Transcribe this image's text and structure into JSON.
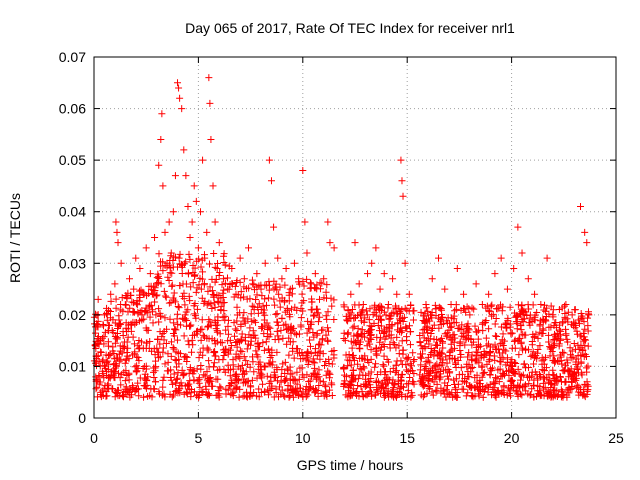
{
  "chart_data": {
    "type": "scatter",
    "title": "Day 065 of 2017, Rate Of TEC Index for receiver nrl1",
    "xlabel": "GPS time / hours",
    "ylabel": "ROTI / TECUs",
    "xlim": [
      0,
      25
    ],
    "ylim": [
      0,
      0.07
    ],
    "x_ticks": [
      0,
      5,
      10,
      15,
      20,
      25
    ],
    "x_tick_labels": [
      "0",
      "5",
      "10",
      "15",
      "20",
      "25"
    ],
    "y_ticks": [
      0,
      0.01,
      0.02,
      0.03,
      0.04,
      0.05,
      0.06,
      0.07
    ],
    "y_tick_labels": [
      "0",
      "0.01",
      "0.02",
      "0.03",
      "0.04",
      "0.05",
      "0.06",
      "0.07"
    ],
    "grid": true,
    "marker": "+",
    "marker_color": "#ff0000",
    "series": [
      {
        "points": [
          [
            0.1,
            0.012
          ],
          [
            0.15,
            0.018
          ],
          [
            0.2,
            0.023
          ],
          [
            0.25,
            0.008
          ],
          [
            0.3,
            0.015
          ],
          [
            0.4,
            0.011
          ],
          [
            0.5,
            0.02
          ],
          [
            0.6,
            0.009
          ],
          [
            0.7,
            0.017
          ],
          [
            0.8,
            0.024
          ],
          [
            0.9,
            0.013
          ],
          [
            1.0,
            0.026
          ],
          [
            1.05,
            0.038
          ],
          [
            1.1,
            0.036
          ],
          [
            1.15,
            0.034
          ],
          [
            1.2,
            0.019
          ],
          [
            1.3,
            0.03
          ],
          [
            1.4,
            0.016
          ],
          [
            1.5,
            0.022
          ],
          [
            1.6,
            0.012
          ],
          [
            1.7,
            0.027
          ],
          [
            1.8,
            0.018
          ],
          [
            1.9,
            0.025
          ],
          [
            2.0,
            0.031
          ],
          [
            2.1,
            0.014
          ],
          [
            2.2,
            0.029
          ],
          [
            2.3,
            0.02
          ],
          [
            2.4,
            0.024
          ],
          [
            2.5,
            0.033
          ],
          [
            2.6,
            0.017
          ],
          [
            2.7,
            0.028
          ],
          [
            2.8,
            0.021
          ],
          [
            2.9,
            0.035
          ],
          [
            3.0,
            0.026
          ],
          [
            3.1,
            0.049
          ],
          [
            3.2,
            0.054
          ],
          [
            3.25,
            0.059
          ],
          [
            3.3,
            0.045
          ],
          [
            3.4,
            0.036
          ],
          [
            3.5,
            0.03
          ],
          [
            3.6,
            0.038
          ],
          [
            3.7,
            0.032
          ],
          [
            3.8,
            0.04
          ],
          [
            3.9,
            0.047
          ],
          [
            4.0,
            0.065
          ],
          [
            4.05,
            0.064
          ],
          [
            4.1,
            0.062
          ],
          [
            4.2,
            0.06
          ],
          [
            4.3,
            0.052
          ],
          [
            4.4,
            0.047
          ],
          [
            4.5,
            0.041
          ],
          [
            4.6,
            0.035
          ],
          [
            4.7,
            0.038
          ],
          [
            4.8,
            0.045
          ],
          [
            4.9,
            0.042
          ],
          [
            5.0,
            0.033
          ],
          [
            5.1,
            0.04
          ],
          [
            5.2,
            0.05
          ],
          [
            5.3,
            0.031
          ],
          [
            5.4,
            0.036
          ],
          [
            5.5,
            0.066
          ],
          [
            5.55,
            0.061
          ],
          [
            5.6,
            0.054
          ],
          [
            5.7,
            0.045
          ],
          [
            5.8,
            0.038
          ],
          [
            5.9,
            0.029
          ],
          [
            6.0,
            0.034
          ],
          [
            6.2,
            0.027
          ],
          [
            6.4,
            0.025
          ],
          [
            6.6,
            0.029
          ],
          [
            6.8,
            0.024
          ],
          [
            7.0,
            0.031
          ],
          [
            7.2,
            0.027
          ],
          [
            7.4,
            0.033
          ],
          [
            7.6,
            0.026
          ],
          [
            7.8,
            0.028
          ],
          [
            8.0,
            0.025
          ],
          [
            8.2,
            0.03
          ],
          [
            8.4,
            0.05
          ],
          [
            8.5,
            0.046
          ],
          [
            8.6,
            0.037
          ],
          [
            8.8,
            0.031
          ],
          [
            9.0,
            0.027
          ],
          [
            9.2,
            0.029
          ],
          [
            9.4,
            0.025
          ],
          [
            9.6,
            0.03
          ],
          [
            9.8,
            0.027
          ],
          [
            10.0,
            0.048
          ],
          [
            10.1,
            0.038
          ],
          [
            10.2,
            0.032
          ],
          [
            10.4,
            0.026
          ],
          [
            10.6,
            0.028
          ],
          [
            10.8,
            0.023
          ],
          [
            11.0,
            0.027
          ],
          [
            11.2,
            0.038
          ],
          [
            11.3,
            0.034
          ],
          [
            11.5,
            0.033
          ],
          [
            12.1,
            0.019
          ],
          [
            12.3,
            0.024
          ],
          [
            12.5,
            0.034
          ],
          [
            12.7,
            0.026
          ],
          [
            12.9,
            0.022
          ],
          [
            13.1,
            0.028
          ],
          [
            13.3,
            0.03
          ],
          [
            13.5,
            0.033
          ],
          [
            13.7,
            0.025
          ],
          [
            13.9,
            0.028
          ],
          [
            14.1,
            0.022
          ],
          [
            14.3,
            0.027
          ],
          [
            14.5,
            0.024
          ],
          [
            14.7,
            0.05
          ],
          [
            14.75,
            0.046
          ],
          [
            14.8,
            0.043
          ],
          [
            14.9,
            0.03
          ],
          [
            15.1,
            0.024
          ],
          [
            15.3,
            0.019
          ],
          [
            15.6,
            0.016
          ],
          [
            15.9,
            0.022
          ],
          [
            16.2,
            0.027
          ],
          [
            16.5,
            0.031
          ],
          [
            16.8,
            0.025
          ],
          [
            17.1,
            0.022
          ],
          [
            17.4,
            0.029
          ],
          [
            17.7,
            0.024
          ],
          [
            18.0,
            0.02
          ],
          [
            18.3,
            0.026
          ],
          [
            18.6,
            0.022
          ],
          [
            18.9,
            0.024
          ],
          [
            19.2,
            0.028
          ],
          [
            19.5,
            0.031
          ],
          [
            19.8,
            0.025
          ],
          [
            20.1,
            0.029
          ],
          [
            20.3,
            0.037
          ],
          [
            20.5,
            0.032
          ],
          [
            20.8,
            0.027
          ],
          [
            21.1,
            0.024
          ],
          [
            21.4,
            0.022
          ],
          [
            21.7,
            0.031
          ],
          [
            22.0,
            0.021
          ],
          [
            22.3,
            0.018
          ],
          [
            22.6,
            0.022
          ],
          [
            22.9,
            0.02
          ],
          [
            23.2,
            0.019
          ],
          [
            23.3,
            0.041
          ],
          [
            23.5,
            0.036
          ],
          [
            23.6,
            0.034
          ],
          [
            23.7,
            0.02
          ]
        ]
      }
    ]
  }
}
